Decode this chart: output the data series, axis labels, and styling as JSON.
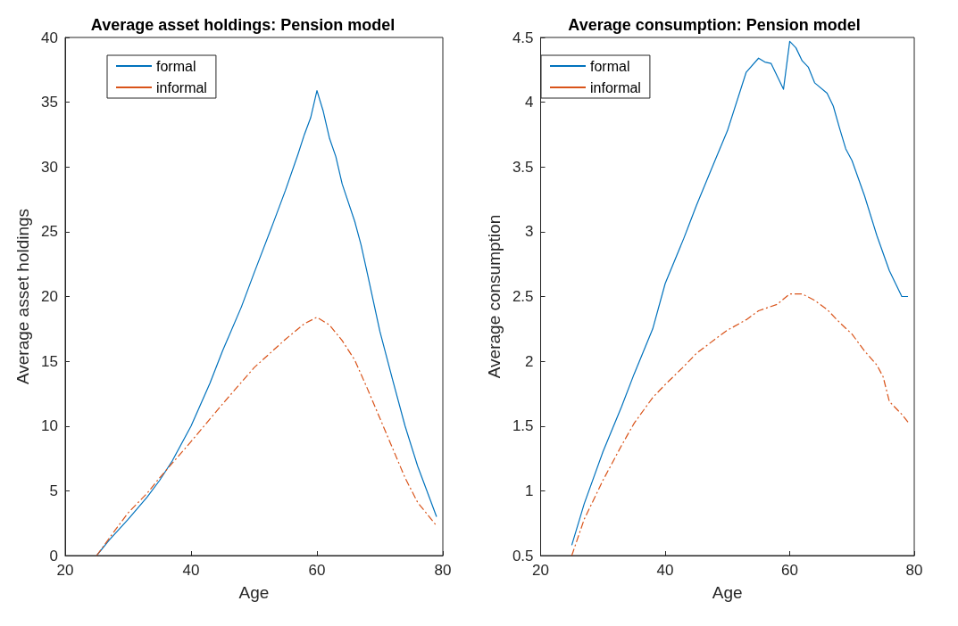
{
  "chart_data": [
    {
      "type": "line",
      "title": "Average asset holdings: Pension model",
      "xlabel": "Age",
      "ylabel": "Average asset holdings",
      "xlim": [
        20,
        80
      ],
      "xticks": [
        20,
        40,
        60,
        80
      ],
      "ylim": [
        0,
        40
      ],
      "yticks": [
        0,
        5,
        10,
        15,
        20,
        25,
        30,
        35,
        40
      ],
      "grid": false,
      "legend": "top left",
      "marker": "none",
      "series": [
        {
          "name": "formal",
          "color": "#0072bd",
          "line_style": "solid",
          "x": [
            25,
            27,
            30,
            33,
            35,
            37,
            40,
            43,
            45,
            48,
            50,
            53,
            55,
            57,
            58,
            59,
            60,
            61,
            62,
            63,
            64,
            66,
            67,
            68,
            70,
            72,
            74,
            76,
            78,
            79
          ],
          "values": [
            0,
            1.2,
            2.8,
            4.5,
            5.8,
            7.3,
            10,
            13.3,
            15.8,
            19.2,
            21.8,
            25.6,
            28.2,
            31,
            32.5,
            33.8,
            35.9,
            34.3,
            32.2,
            30.8,
            28.7,
            25.8,
            24,
            21.8,
            17.3,
            13.6,
            10,
            6.9,
            4.3,
            3
          ]
        },
        {
          "name": "informal",
          "color": "#d95319",
          "line_style": "dashed",
          "x": [
            25,
            28,
            30,
            33,
            35,
            40,
            45,
            50,
            55,
            58,
            60,
            62,
            64,
            66,
            68,
            70,
            72,
            74,
            76,
            78,
            79
          ],
          "values": [
            0,
            2,
            3.3,
            4.8,
            6,
            8.8,
            11.7,
            14.5,
            16.7,
            17.9,
            18.4,
            17.8,
            16.6,
            15.1,
            12.9,
            10.6,
            8.3,
            6,
            4.1,
            2.9,
            2.3
          ]
        }
      ]
    },
    {
      "type": "line",
      "title": "Average consumption: Pension model",
      "xlabel": "Age",
      "ylabel": "Average consumption",
      "xlim": [
        20,
        80
      ],
      "xticks": [
        20,
        40,
        60,
        80
      ],
      "ylim": [
        0.5,
        4.5
      ],
      "yticks": [
        0.5,
        1,
        1.5,
        2,
        2.5,
        3,
        3.5,
        4,
        4.5
      ],
      "grid": false,
      "legend": "top left",
      "marker": "none",
      "series": [
        {
          "name": "formal",
          "color": "#0072bd",
          "line_style": "solid",
          "x": [
            25,
            27,
            30,
            33,
            35,
            38,
            40,
            43,
            45,
            48,
            50,
            53,
            55,
            56,
            57,
            59,
            60,
            61,
            62,
            63,
            64,
            66,
            67,
            68,
            69,
            70,
            72,
            74,
            76,
            77,
            78,
            79
          ],
          "values": [
            0.58,
            0.9,
            1.3,
            1.65,
            1.9,
            2.25,
            2.6,
            2.95,
            3.2,
            3.55,
            3.78,
            4.23,
            4.34,
            4.31,
            4.3,
            4.1,
            4.47,
            4.42,
            4.32,
            4.27,
            4.15,
            4.07,
            3.97,
            3.8,
            3.64,
            3.55,
            3.28,
            2.97,
            2.7,
            2.6,
            2.5,
            2.5
          ]
        },
        {
          "name": "informal",
          "color": "#d95319",
          "line_style": "dashed",
          "x": [
            25,
            27,
            30,
            33,
            35,
            38,
            40,
            43,
            45,
            48,
            50,
            53,
            55,
            58,
            60,
            62,
            64,
            66,
            68,
            70,
            72,
            74,
            75,
            76,
            78,
            79
          ],
          "values": [
            0.5,
            0.78,
            1.08,
            1.35,
            1.52,
            1.72,
            1.82,
            1.96,
            2.06,
            2.17,
            2.24,
            2.32,
            2.39,
            2.44,
            2.52,
            2.52,
            2.47,
            2.4,
            2.3,
            2.21,
            2.08,
            1.97,
            1.88,
            1.69,
            1.59,
            1.53
          ]
        }
      ]
    }
  ]
}
